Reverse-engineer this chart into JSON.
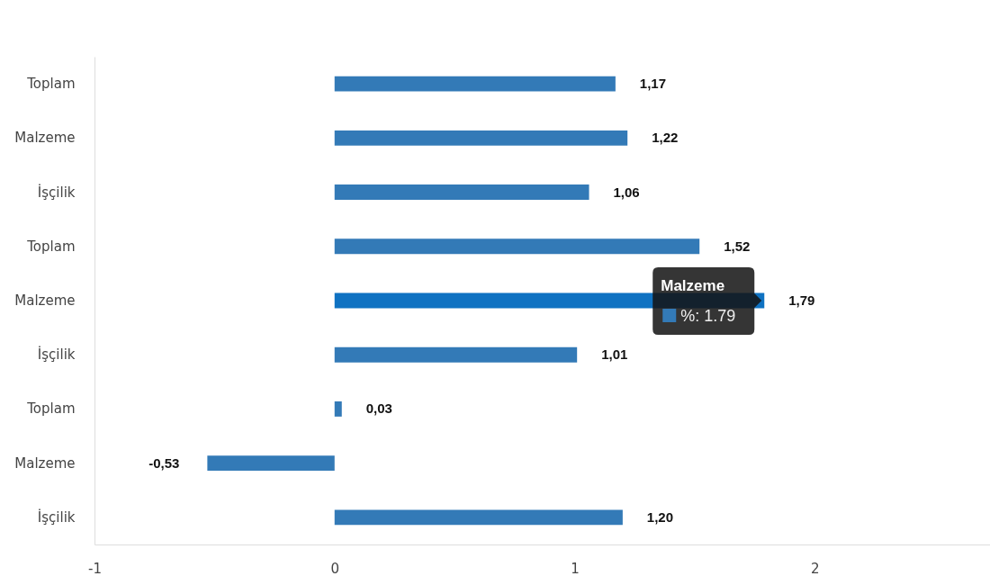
{
  "chart_data": {
    "type": "bar",
    "orientation": "horizontal",
    "categories": [
      "Toplam",
      "Malzeme",
      "İşçilik",
      "Toplam",
      "Malzeme",
      "İşçilik",
      "Toplam",
      "Malzeme",
      "İşçilik"
    ],
    "values": [
      1.17,
      1.22,
      1.06,
      1.52,
      1.79,
      1.01,
      0.03,
      -0.53,
      1.2
    ],
    "colors": [
      "#337ab7",
      "#337ab7",
      "#337ab7",
      "#337ab7",
      "#0f72c2",
      "#337ab7",
      "#337ab7",
      "#337ab7",
      "#337ab7"
    ],
    "value_labels": [
      "1,17",
      "1,22",
      "1,06",
      "1,52",
      "1,79",
      "1,01",
      "0,03",
      "-0,53",
      "1,20"
    ],
    "xlim": [
      -1,
      2.73
    ],
    "xticks": [
      -1,
      0,
      1,
      2
    ],
    "grid": false,
    "annotations": [
      "Malzeme",
      "%: 1.79"
    ]
  }
}
